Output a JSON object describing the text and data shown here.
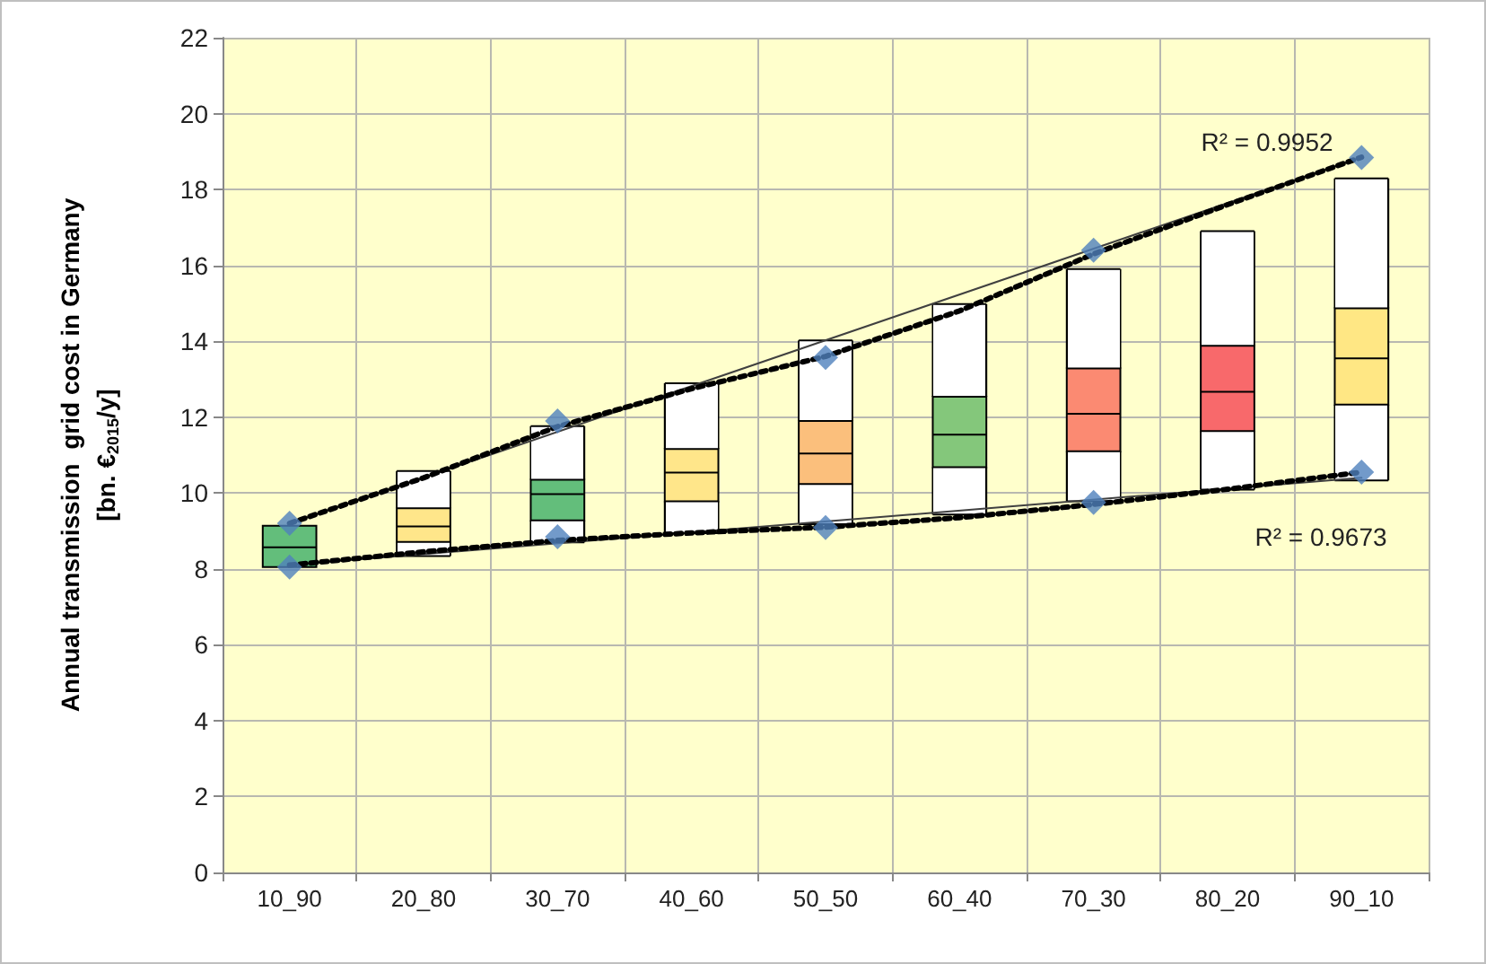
{
  "chart_data": {
    "type": "box",
    "ylabel": "Annual transmission  grid cost in Germany\n[bn. €$_{2015}$/y]",
    "categories": [
      "10_90",
      "20_80",
      "30_70",
      "40_60",
      "50_50",
      "60_40",
      "70_30",
      "80_20",
      "90_10"
    ],
    "boxes": [
      {
        "low": 8.05,
        "q1": 8.05,
        "median": 8.57,
        "q3": 9.14,
        "high": 9.14
      },
      {
        "low": 8.34,
        "q1": 8.71,
        "median": 9.12,
        "q3": 9.6,
        "high": 10.58
      },
      {
        "low": 8.7,
        "q1": 9.28,
        "median": 9.97,
        "q3": 10.35,
        "high": 11.76
      },
      {
        "low": 8.94,
        "q1": 9.78,
        "median": 10.54,
        "q3": 11.16,
        "high": 12.89
      },
      {
        "low": 9.18,
        "q1": 10.24,
        "median": 11.04,
        "q3": 11.9,
        "high": 14.02
      },
      {
        "low": 9.43,
        "q1": 10.68,
        "median": 11.54,
        "q3": 12.54,
        "high": 14.98
      },
      {
        "low": 9.78,
        "q1": 11.1,
        "median": 12.09,
        "q3": 13.28,
        "high": 15.9
      },
      {
        "low": 10.09,
        "q1": 11.63,
        "median": 12.67,
        "q3": 13.88,
        "high": 16.9
      },
      {
        "low": 10.33,
        "q1": 12.33,
        "median": 13.55,
        "q3": 14.87,
        "high": 18.29
      }
    ],
    "colors": [
      "#63be7b",
      "#ffe68a",
      "#63be7b",
      "#ffe68a",
      "#fbbf7c",
      "#84c77b",
      "#fb8a72",
      "#f8696b",
      "#ffe784"
    ],
    "series": [
      {
        "type": "scatter",
        "color": "#4f81bd",
        "marker": "diamond",
        "x": [
          "10_90",
          "30_70",
          "50_50",
          "70_30",
          "90_10"
        ],
        "values": [
          9.2,
          11.9,
          13.57,
          16.4,
          18.84
        ]
      },
      {
        "type": "scatter",
        "color": "#4f81bd",
        "marker": "diamond",
        "x": [
          "10_90",
          "30_70",
          "50_50",
          "70_30",
          "90_10"
        ],
        "values": [
          8.05,
          8.85,
          9.09,
          9.75,
          10.55
        ]
      },
      {
        "type": "line",
        "color": "#404040",
        "line_style": "solid",
        "x": [
          "10_90",
          "90_10"
        ],
        "values": [
          9.2,
          18.85
        ]
      },
      {
        "type": "line",
        "color": "#404040",
        "line_style": "solid",
        "x": [
          "10_90",
          "90_10"
        ],
        "values": [
          8.1,
          10.4
        ]
      },
      {
        "type": "line",
        "color": "#000000",
        "line_style": "dotted",
        "x": [
          "10_90",
          "20_80",
          "30_70",
          "40_60",
          "50_50",
          "60_40",
          "70_30",
          "80_20",
          "90_10"
        ],
        "values": [
          9.2,
          10.4,
          11.75,
          12.75,
          13.6,
          14.8,
          16.3,
          17.6,
          18.85
        ]
      },
      {
        "type": "line",
        "color": "#000000",
        "line_style": "dotted",
        "x": [
          "10_90",
          "20_80",
          "30_70",
          "40_60",
          "50_50",
          "60_40",
          "70_30",
          "80_20",
          "90_10"
        ],
        "values": [
          8.1,
          8.45,
          8.75,
          8.95,
          9.1,
          9.35,
          9.7,
          10.1,
          10.55
        ]
      }
    ],
    "annotations": [
      "R² = 0.9952",
      "R² = 0.9673"
    ],
    "ylim": [
      0,
      22
    ],
    "yticks": [
      0,
      2,
      4,
      6,
      8,
      10,
      12,
      14,
      16,
      18,
      20,
      22
    ],
    "grid": true
  }
}
